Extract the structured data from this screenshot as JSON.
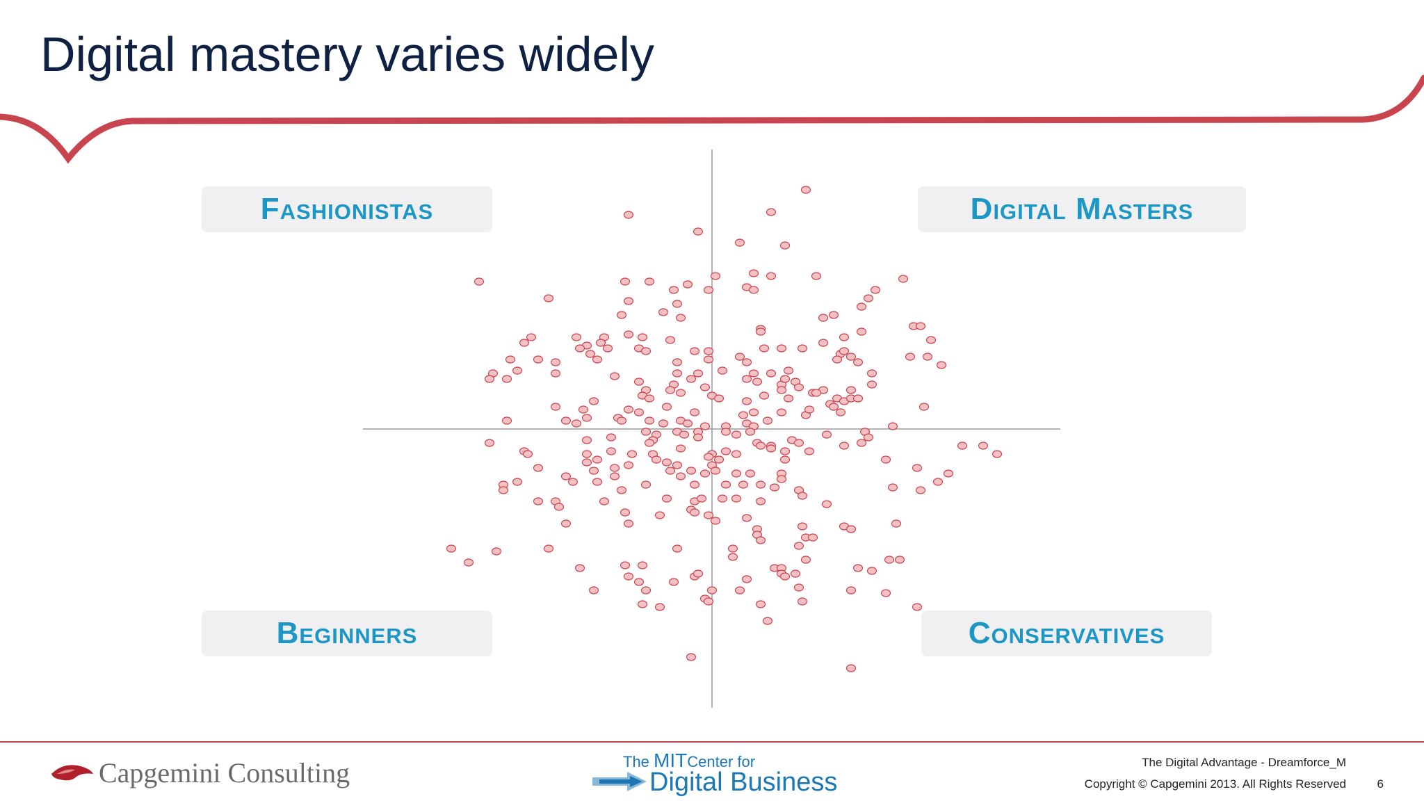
{
  "slide": {
    "title": "Digital mastery varies widely",
    "accent_color": "#c8454f",
    "title_color": "#0f2142",
    "label_color": "#1c96c4"
  },
  "quadrant_labels": {
    "top_left": "Fashionistas",
    "top_right": "Digital Masters",
    "bottom_left": "Beginners",
    "bottom_right": "Conservatives"
  },
  "footer": {
    "capgemini": "Capgemini Consulting",
    "mit_line1_prefix": "The ",
    "mit_line1_mit": "MIT",
    "mit_line1_suffix": "Center for",
    "mit_line2": "Digital Business",
    "presentation": "The Digital Advantage - Dreamforce_M",
    "copyright": "Copyright © Capgemini 2013. All Rights Reserved",
    "page_number": "6"
  },
  "chart_data": {
    "type": "scatter",
    "title": "",
    "xlabel": "",
    "ylabel": "",
    "xlim": [
      -1,
      1
    ],
    "ylim": [
      -1,
      1
    ],
    "marker_fill": "#f3c0c4",
    "marker_stroke": "#c8454f",
    "points": [
      [
        0.27,
        0.86
      ],
      [
        0.17,
        0.78
      ],
      [
        -0.24,
        0.77
      ],
      [
        -0.04,
        0.71
      ],
      [
        0.08,
        0.67
      ],
      [
        0.21,
        0.66
      ],
      [
        -0.67,
        0.53
      ],
      [
        0.01,
        0.55
      ],
      [
        0.12,
        0.56
      ],
      [
        0.17,
        0.55
      ],
      [
        0.3,
        0.55
      ],
      [
        0.55,
        0.54
      ],
      [
        -0.25,
        0.53
      ],
      [
        -0.18,
        0.53
      ],
      [
        -0.07,
        0.52
      ],
      [
        -0.24,
        0.46
      ],
      [
        -0.11,
        0.5
      ],
      [
        -0.01,
        0.5
      ],
      [
        0.1,
        0.51
      ],
      [
        0.12,
        0.5
      ],
      [
        0.47,
        0.5
      ],
      [
        0.45,
        0.47
      ],
      [
        -0.47,
        0.47
      ],
      [
        -0.1,
        0.45
      ],
      [
        0.43,
        0.44
      ],
      [
        -0.26,
        0.41
      ],
      [
        -0.14,
        0.42
      ],
      [
        -0.09,
        0.4
      ],
      [
        0.35,
        0.41
      ],
      [
        0.32,
        0.4
      ],
      [
        0.58,
        0.37
      ],
      [
        0.6,
        0.37
      ],
      [
        0.14,
        0.36
      ],
      [
        0.14,
        0.35
      ],
      [
        0.43,
        0.35
      ],
      [
        0.38,
        0.33
      ],
      [
        -0.24,
        0.34
      ],
      [
        -0.39,
        0.33
      ],
      [
        -0.31,
        0.33
      ],
      [
        -0.2,
        0.33
      ],
      [
        -0.12,
        0.32
      ],
      [
        0.32,
        0.31
      ],
      [
        0.63,
        0.32
      ],
      [
        -0.52,
        0.33
      ],
      [
        -0.54,
        0.31
      ],
      [
        -0.32,
        0.31
      ],
      [
        -0.36,
        0.3
      ],
      [
        -0.38,
        0.29
      ],
      [
        -0.3,
        0.29
      ],
      [
        -0.21,
        0.29
      ],
      [
        -0.19,
        0.28
      ],
      [
        -0.05,
        0.28
      ],
      [
        -0.01,
        0.28
      ],
      [
        0.15,
        0.29
      ],
      [
        0.2,
        0.29
      ],
      [
        0.26,
        0.29
      ],
      [
        0.37,
        0.27
      ],
      [
        0.38,
        0.28
      ],
      [
        0.57,
        0.26
      ],
      [
        0.62,
        0.26
      ],
      [
        -0.58,
        0.25
      ],
      [
        -0.5,
        0.25
      ],
      [
        -0.45,
        0.24
      ],
      [
        -0.33,
        0.25
      ],
      [
        -0.35,
        0.27
      ],
      [
        -0.1,
        0.24
      ],
      [
        -0.01,
        0.25
      ],
      [
        0.08,
        0.26
      ],
      [
        0.1,
        0.24
      ],
      [
        0.42,
        0.24
      ],
      [
        0.4,
        0.26
      ],
      [
        0.66,
        0.23
      ],
      [
        0.36,
        0.25
      ],
      [
        -0.63,
        0.2
      ],
      [
        -0.56,
        0.21
      ],
      [
        -0.45,
        0.2
      ],
      [
        -0.28,
        0.19
      ],
      [
        -0.1,
        0.2
      ],
      [
        0.03,
        0.21
      ],
      [
        0.12,
        0.2
      ],
      [
        0.17,
        0.2
      ],
      [
        0.22,
        0.21
      ],
      [
        0.46,
        0.2
      ],
      [
        -0.64,
        0.18
      ],
      [
        -0.59,
        0.18
      ],
      [
        -0.21,
        0.17
      ],
      [
        -0.11,
        0.16
      ],
      [
        -0.06,
        0.18
      ],
      [
        -0.04,
        0.2
      ],
      [
        0.1,
        0.18
      ],
      [
        0.13,
        0.17
      ],
      [
        0.2,
        0.16
      ],
      [
        0.21,
        0.18
      ],
      [
        0.24,
        0.17
      ],
      [
        0.32,
        0.14
      ],
      [
        -0.19,
        0.14
      ],
      [
        -0.12,
        0.14
      ],
      [
        -0.02,
        0.15
      ],
      [
        0.2,
        0.14
      ],
      [
        0.25,
        0.15
      ],
      [
        0.4,
        0.14
      ],
      [
        0.46,
        0.16
      ],
      [
        -0.34,
        0.1
      ],
      [
        -0.2,
        0.12
      ],
      [
        -0.18,
        0.11
      ],
      [
        -0.09,
        0.13
      ],
      [
        0.0,
        0.12
      ],
      [
        0.02,
        0.11
      ],
      [
        0.1,
        0.1
      ],
      [
        0.15,
        0.12
      ],
      [
        0.22,
        0.11
      ],
      [
        0.29,
        0.13
      ],
      [
        0.3,
        0.13
      ],
      [
        0.34,
        0.09
      ],
      [
        0.36,
        0.11
      ],
      [
        0.38,
        0.1
      ],
      [
        0.4,
        0.11
      ],
      [
        0.42,
        0.11
      ],
      [
        0.61,
        0.08
      ],
      [
        -0.45,
        0.08
      ],
      [
        -0.37,
        0.07
      ],
      [
        -0.24,
        0.07
      ],
      [
        -0.21,
        0.06
      ],
      [
        -0.13,
        0.08
      ],
      [
        -0.05,
        0.06
      ],
      [
        0.09,
        0.05
      ],
      [
        0.12,
        0.06
      ],
      [
        0.27,
        0.05
      ],
      [
        0.28,
        0.07
      ],
      [
        -0.59,
        0.03
      ],
      [
        -0.42,
        0.03
      ],
      [
        -0.39,
        0.02
      ],
      [
        -0.36,
        0.04
      ],
      [
        -0.27,
        0.04
      ],
      [
        -0.26,
        0.03
      ],
      [
        -0.18,
        0.03
      ],
      [
        -0.14,
        0.02
      ],
      [
        -0.09,
        0.03
      ],
      [
        -0.07,
        0.02
      ],
      [
        -0.02,
        0.01
      ],
      [
        0.04,
        0.01
      ],
      [
        0.1,
        0.02
      ],
      [
        0.12,
        0.01
      ],
      [
        0.16,
        0.03
      ],
      [
        0.2,
        0.06
      ],
      [
        0.35,
        0.08
      ],
      [
        0.37,
        0.06
      ],
      [
        0.52,
        0.01
      ],
      [
        -0.04,
        -0.01
      ],
      [
        -0.1,
        -0.01
      ],
      [
        -0.16,
        -0.02
      ],
      [
        -0.19,
        -0.01
      ],
      [
        -0.08,
        -0.02
      ],
      [
        -0.04,
        -0.03
      ],
      [
        0.04,
        -0.01
      ],
      [
        0.07,
        -0.02
      ],
      [
        0.11,
        -0.01
      ],
      [
        0.23,
        -0.04
      ],
      [
        0.33,
        -0.02
      ],
      [
        0.44,
        -0.01
      ],
      [
        0.45,
        -0.03
      ],
      [
        -0.64,
        -0.05
      ],
      [
        -0.36,
        -0.04
      ],
      [
        -0.29,
        -0.03
      ],
      [
        -0.17,
        -0.04
      ],
      [
        -0.18,
        -0.05
      ],
      [
        0.13,
        -0.05
      ],
      [
        0.14,
        -0.06
      ],
      [
        0.17,
        -0.06
      ],
      [
        0.25,
        -0.05
      ],
      [
        0.38,
        -0.06
      ],
      [
        0.43,
        -0.05
      ],
      [
        0.72,
        -0.06
      ],
      [
        -0.54,
        -0.08
      ],
      [
        -0.53,
        -0.09
      ],
      [
        -0.36,
        -0.09
      ],
      [
        -0.29,
        -0.08
      ],
      [
        -0.23,
        -0.09
      ],
      [
        -0.17,
        -0.09
      ],
      [
        -0.09,
        -0.07
      ],
      [
        0.0,
        -0.09
      ],
      [
        0.04,
        -0.08
      ],
      [
        0.07,
        -0.09
      ],
      [
        0.17,
        -0.07
      ],
      [
        0.21,
        -0.08
      ],
      [
        0.28,
        -0.08
      ],
      [
        -0.33,
        -0.11
      ],
      [
        -0.16,
        -0.11
      ],
      [
        -0.13,
        -0.12
      ],
      [
        -0.1,
        -0.13
      ],
      [
        -0.01,
        -0.1
      ],
      [
        0.0,
        -0.13
      ],
      [
        0.02,
        -0.11
      ],
      [
        0.21,
        -0.11
      ],
      [
        -0.5,
        -0.14
      ],
      [
        -0.36,
        -0.12
      ],
      [
        -0.34,
        -0.15
      ],
      [
        -0.28,
        -0.14
      ],
      [
        -0.24,
        -0.13
      ],
      [
        -0.12,
        -0.15
      ],
      [
        -0.06,
        -0.15
      ],
      [
        -0.02,
        -0.16
      ],
      [
        0.01,
        -0.15
      ],
      [
        0.07,
        -0.16
      ],
      [
        0.11,
        -0.16
      ],
      [
        0.2,
        -0.16
      ],
      [
        0.5,
        -0.11
      ],
      [
        0.59,
        -0.14
      ],
      [
        0.68,
        -0.16
      ],
      [
        0.78,
        -0.06
      ],
      [
        0.82,
        -0.09
      ],
      [
        -0.6,
        -0.2
      ],
      [
        -0.6,
        -0.22
      ],
      [
        -0.56,
        -0.19
      ],
      [
        -0.42,
        -0.17
      ],
      [
        -0.4,
        -0.19
      ],
      [
        -0.33,
        -0.19
      ],
      [
        -0.28,
        -0.17
      ],
      [
        -0.26,
        -0.22
      ],
      [
        -0.19,
        -0.2
      ],
      [
        -0.09,
        -0.17
      ],
      [
        -0.05,
        -0.2
      ],
      [
        0.04,
        -0.2
      ],
      [
        0.09,
        -0.2
      ],
      [
        0.14,
        -0.2
      ],
      [
        0.18,
        -0.21
      ],
      [
        0.2,
        -0.18
      ],
      [
        0.25,
        -0.22
      ],
      [
        0.26,
        -0.24
      ],
      [
        0.52,
        -0.21
      ],
      [
        0.6,
        -0.22
      ],
      [
        0.65,
        -0.19
      ],
      [
        -0.5,
        -0.26
      ],
      [
        -0.45,
        -0.26
      ],
      [
        -0.44,
        -0.28
      ],
      [
        -0.31,
        -0.26
      ],
      [
        -0.13,
        -0.25
      ],
      [
        -0.05,
        -0.26
      ],
      [
        -0.03,
        -0.25
      ],
      [
        0.03,
        -0.25
      ],
      [
        0.07,
        -0.25
      ],
      [
        0.14,
        -0.26
      ],
      [
        -0.25,
        -0.3
      ],
      [
        -0.15,
        -0.31
      ],
      [
        -0.06,
        -0.29
      ],
      [
        -0.05,
        -0.3
      ],
      [
        -0.01,
        -0.31
      ],
      [
        0.01,
        -0.33
      ],
      [
        0.1,
        -0.32
      ],
      [
        0.33,
        -0.27
      ],
      [
        -0.42,
        -0.34
      ],
      [
        -0.24,
        -0.34
      ],
      [
        0.13,
        -0.36
      ],
      [
        0.26,
        -0.35
      ],
      [
        0.38,
        -0.35
      ],
      [
        0.4,
        -0.36
      ],
      [
        0.53,
        -0.34
      ],
      [
        -0.75,
        -0.43
      ],
      [
        -0.62,
        -0.44
      ],
      [
        -0.47,
        -0.43
      ],
      [
        -0.1,
        -0.43
      ],
      [
        0.06,
        -0.43
      ],
      [
        0.25,
        -0.42
      ],
      [
        0.27,
        -0.39
      ],
      [
        0.29,
        -0.39
      ],
      [
        0.13,
        -0.38
      ],
      [
        0.14,
        -0.4
      ],
      [
        -0.7,
        -0.48
      ],
      [
        -0.38,
        -0.5
      ],
      [
        -0.2,
        -0.49
      ],
      [
        -0.25,
        -0.49
      ],
      [
        0.06,
        -0.46
      ],
      [
        0.27,
        -0.47
      ],
      [
        0.42,
        -0.5
      ],
      [
        0.51,
        -0.47
      ],
      [
        0.54,
        -0.47
      ],
      [
        0.18,
        -0.5
      ],
      [
        0.2,
        -0.5
      ],
      [
        -0.24,
        -0.53
      ],
      [
        -0.21,
        -0.55
      ],
      [
        -0.11,
        -0.55
      ],
      [
        -0.05,
        -0.53
      ],
      [
        -0.04,
        -0.52
      ],
      [
        0.1,
        -0.54
      ],
      [
        0.2,
        -0.52
      ],
      [
        0.21,
        -0.53
      ],
      [
        0.24,
        -0.52
      ],
      [
        0.46,
        -0.51
      ],
      [
        -0.34,
        -0.58
      ],
      [
        -0.19,
        -0.58
      ],
      [
        0.0,
        -0.58
      ],
      [
        0.08,
        -0.58
      ],
      [
        0.25,
        -0.57
      ],
      [
        0.4,
        -0.58
      ],
      [
        0.5,
        -0.59
      ],
      [
        -0.2,
        -0.63
      ],
      [
        -0.15,
        -0.64
      ],
      [
        -0.02,
        -0.61
      ],
      [
        -0.01,
        -0.62
      ],
      [
        0.14,
        -0.63
      ],
      [
        0.26,
        -0.62
      ],
      [
        0.59,
        -0.64
      ],
      [
        0.16,
        -0.69
      ],
      [
        -0.06,
        -0.82
      ],
      [
        0.4,
        -0.86
      ]
    ]
  }
}
